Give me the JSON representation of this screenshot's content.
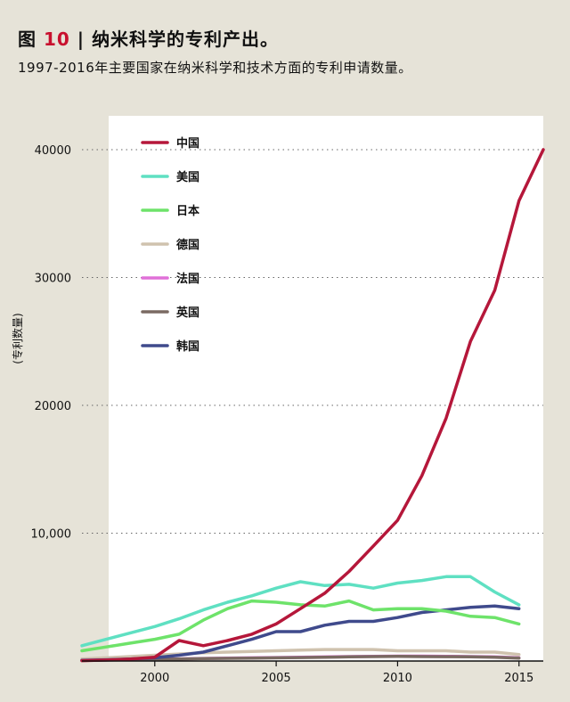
{
  "header": {
    "fig_word": "图",
    "fig_number": "10",
    "separator": "|",
    "title_text": "纳米科学的专利产出。",
    "subtitle": "1997-2016年主要国家在纳米科学和技术方面的专利申请数量。"
  },
  "colors": {
    "background": "#e6e3d8",
    "plot_background": "#ffffff",
    "accent": "#c8102e"
  },
  "chart_data": {
    "type": "line",
    "ylabel": "(专利数量)",
    "xlabel": "",
    "xlim": [
      1997,
      2016
    ],
    "ylim": [
      0,
      40000
    ],
    "x_ticks": [
      2000,
      2005,
      2010,
      2015
    ],
    "y_ticks": [
      {
        "value": 10000,
        "label": "10,000"
      },
      {
        "value": 20000,
        "label": "20000"
      },
      {
        "value": 30000,
        "label": "30000"
      },
      {
        "value": 40000,
        "label": "40000"
      }
    ],
    "grid": "horizontal-dotted",
    "legend_position": "top-left",
    "x": [
      1997,
      1998,
      1999,
      2000,
      2001,
      2002,
      2003,
      2004,
      2005,
      2006,
      2007,
      2008,
      2009,
      2010,
      2011,
      2012,
      2013,
      2014,
      2015,
      2016
    ],
    "series": [
      {
        "name": "中国",
        "color": "#b5173a",
        "x": [
          1997,
          1998,
          1999,
          2000,
          2001,
          2002,
          2003,
          2004,
          2005,
          2006,
          2007,
          2008,
          2009,
          2010,
          2011,
          2012,
          2013,
          2014,
          2015,
          2016
        ],
        "values": [
          30,
          80,
          150,
          300,
          1600,
          1200,
          1600,
          2100,
          2900,
          4100,
          5300,
          7000,
          9000,
          11000,
          14500,
          19000,
          25000,
          29000,
          36000,
          40000
        ]
      },
      {
        "name": "美国",
        "color": "#5fe0c2",
        "x": [
          1997,
          1998,
          1999,
          2000,
          2001,
          2002,
          2003,
          2004,
          2005,
          2006,
          2007,
          2008,
          2009,
          2010,
          2011,
          2012,
          2013,
          2014,
          2015
        ],
        "values": [
          1200,
          1700,
          2200,
          2700,
          3300,
          4000,
          4600,
          5100,
          5700,
          6200,
          5900,
          6000,
          5700,
          6100,
          6300,
          6600,
          6600,
          5400,
          4400
        ]
      },
      {
        "name": "日本",
        "color": "#6ee36a",
        "x": [
          1997,
          1998,
          1999,
          2000,
          2001,
          2002,
          2003,
          2004,
          2005,
          2006,
          2007,
          2008,
          2009,
          2010,
          2011,
          2012,
          2013,
          2014,
          2015
        ],
        "values": [
          800,
          1100,
          1400,
          1700,
          2100,
          3200,
          4100,
          4700,
          4600,
          4400,
          4300,
          4700,
          4000,
          4100,
          4100,
          3900,
          3500,
          3400,
          2900
        ]
      },
      {
        "name": "德国",
        "color": "#cfc2ae",
        "x": [
          1997,
          1998,
          1999,
          2000,
          2001,
          2002,
          2003,
          2004,
          2005,
          2006,
          2007,
          2008,
          2009,
          2010,
          2011,
          2012,
          2013,
          2014,
          2015
        ],
        "values": [
          150,
          250,
          350,
          450,
          550,
          650,
          700,
          750,
          800,
          850,
          900,
          900,
          900,
          800,
          800,
          800,
          700,
          700,
          500
        ]
      },
      {
        "name": "法国",
        "color": "#e070d8",
        "x": [
          1997,
          1998,
          1999,
          2000,
          2001,
          2002,
          2003,
          2004,
          2005,
          2006,
          2007,
          2008,
          2009,
          2010,
          2011,
          2012,
          2013,
          2014,
          2015
        ],
        "values": [
          50,
          80,
          110,
          140,
          170,
          200,
          220,
          250,
          270,
          290,
          320,
          350,
          370,
          380,
          380,
          370,
          350,
          320,
          250
        ]
      },
      {
        "name": "英国",
        "color": "#7a6a62",
        "x": [
          1997,
          1998,
          1999,
          2000,
          2001,
          2002,
          2003,
          2004,
          2005,
          2006,
          2007,
          2008,
          2009,
          2010,
          2011,
          2012,
          2013,
          2014,
          2015
        ],
        "values": [
          40,
          70,
          100,
          130,
          160,
          190,
          210,
          230,
          250,
          270,
          300,
          330,
          350,
          360,
          350,
          340,
          330,
          300,
          230
        ]
      },
      {
        "name": "韩国",
        "color": "#3f4a8c",
        "x": [
          1997,
          1998,
          1999,
          2000,
          2001,
          2002,
          2003,
          2004,
          2005,
          2006,
          2007,
          2008,
          2009,
          2010,
          2011,
          2012,
          2013,
          2014,
          2015
        ],
        "values": [
          50,
          100,
          150,
          250,
          450,
          700,
          1200,
          1700,
          2300,
          2300,
          2800,
          3100,
          3100,
          3400,
          3800,
          4000,
          4200,
          4300,
          4100
        ]
      }
    ]
  }
}
